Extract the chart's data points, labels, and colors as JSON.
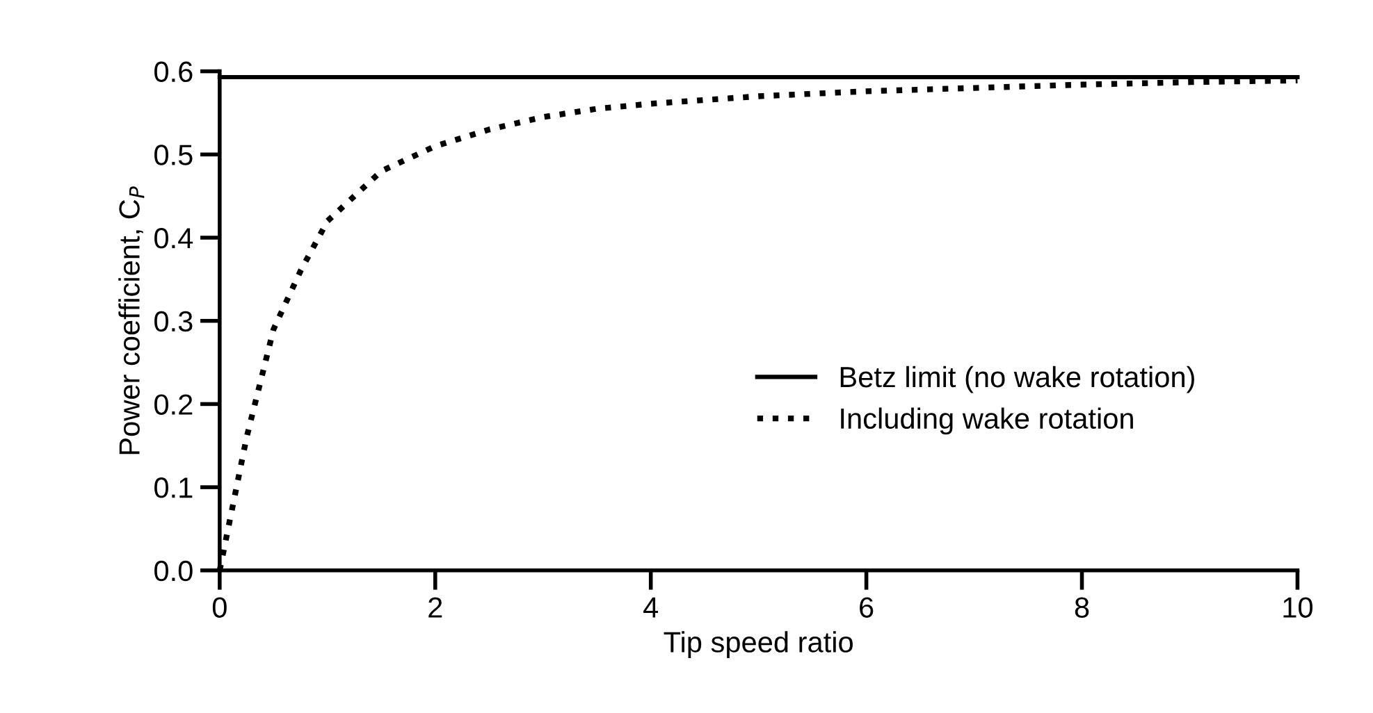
{
  "chart_data": {
    "type": "line",
    "xlabel": "Tip speed ratio",
    "ylabel": "Power coefficient, C$_{P}$",
    "xlim": [
      0,
      10
    ],
    "ylim": [
      0,
      0.6
    ],
    "xticks": [
      0,
      2,
      4,
      6,
      8,
      10
    ],
    "yticks": [
      {
        "value": 0,
        "label": "0.0"
      },
      0.1,
      0.2,
      0.3,
      0.4,
      0.5,
      0.6
    ],
    "grid": false,
    "legend": "bottom right",
    "marker": "none",
    "series": [
      {
        "name": "Betz limit (no wake rotation)",
        "color": "#000000",
        "line_style": "solid",
        "x": [
          0,
          10
        ],
        "values": [
          0.593,
          0.593
        ]
      },
      {
        "name": "Including wake rotation",
        "color": "#000000",
        "line_style": "dotted",
        "x": [
          0,
          0.25,
          0.5,
          0.75,
          1.0,
          1.25,
          1.5,
          2.0,
          2.5,
          3.0,
          3.5,
          4.0,
          5.0,
          6.0,
          7.0,
          8.0,
          9.0,
          10.0
        ],
        "values": [
          0,
          0.16,
          0.29,
          0.36,
          0.42,
          0.45,
          0.48,
          0.51,
          0.53,
          0.545,
          0.555,
          0.561,
          0.57,
          0.576,
          0.58,
          0.584,
          0.587,
          0.589
        ]
      }
    ]
  }
}
